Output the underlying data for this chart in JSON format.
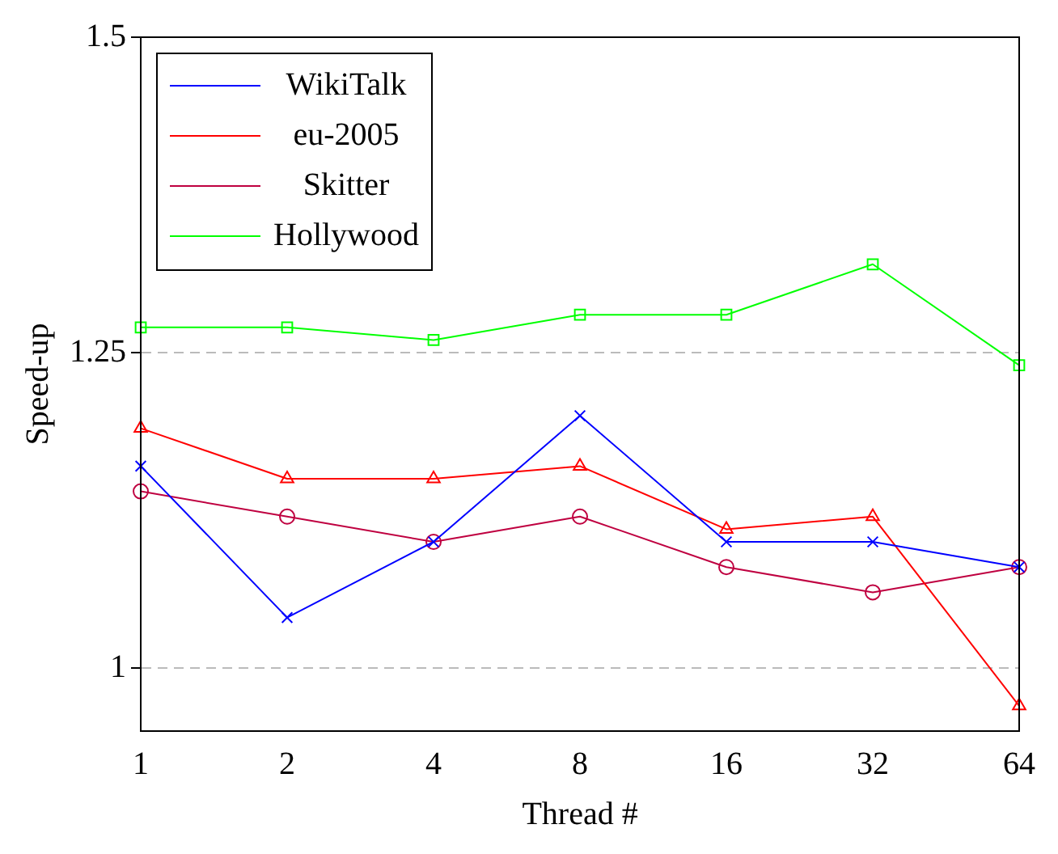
{
  "chart_data": {
    "type": "line",
    "xlabel": "Thread #",
    "ylabel": "Speed-up",
    "categories": [
      "1",
      "2",
      "4",
      "8",
      "16",
      "32",
      "64"
    ],
    "ylim": [
      0.95,
      1.5
    ],
    "yticks": [
      1,
      1.25,
      1.5
    ],
    "grid": "y",
    "legend": "top left",
    "line_style": "solid",
    "series": [
      {
        "name": "WikiTalk",
        "color": "#0000ff",
        "marker": "cross",
        "values": [
          1.16,
          1.04,
          1.1,
          1.2,
          1.1,
          1.1,
          1.08
        ]
      },
      {
        "name": "eu-2005",
        "color": "#ff0000",
        "marker": "triangle",
        "values": [
          1.19,
          1.15,
          1.15,
          1.16,
          1.11,
          1.12,
          0.97
        ]
      },
      {
        "name": "Skitter",
        "color": "#bf0040",
        "marker": "circle",
        "values": [
          1.14,
          1.12,
          1.1,
          1.12,
          1.08,
          1.06,
          1.08
        ]
      },
      {
        "name": "Hollywood",
        "color": "#00ff00",
        "marker": "square",
        "values": [
          1.27,
          1.27,
          1.26,
          1.28,
          1.28,
          1.32,
          1.24
        ]
      }
    ]
  }
}
